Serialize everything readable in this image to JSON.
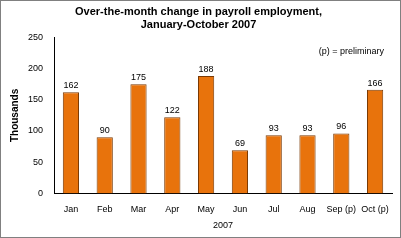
{
  "chart_data": {
    "type": "bar",
    "title": [
      "Over-the-month change in payroll employment,",
      "January-October 2007"
    ],
    "y_label": "Thousands",
    "x_label": "2007",
    "annotations": [
      "(p) = preliminary"
    ],
    "categories": [
      "Jan",
      "Feb",
      "Mar",
      "Apr",
      "May",
      "Jun",
      "Jul",
      "Aug",
      "Sep (p)",
      "Oct (p)"
    ],
    "values": [
      162,
      90,
      175,
      122,
      188,
      69,
      93,
      93,
      96,
      166
    ],
    "color": "#e8730c",
    "ylim": [
      0,
      250
    ],
    "yticks": [
      0,
      50,
      100,
      150,
      200,
      250
    ],
    "grid": false,
    "data_labels": true
  }
}
